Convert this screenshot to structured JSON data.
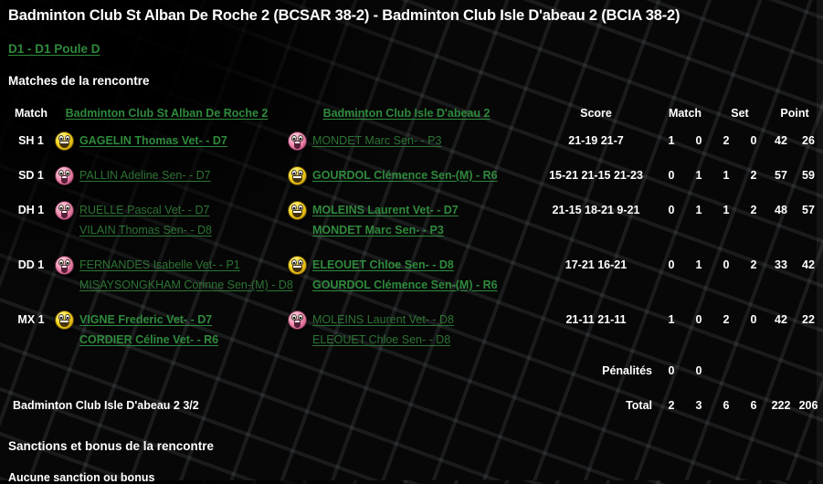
{
  "colors": {
    "link_green": "#2f8a3c",
    "muted_green": "#2c7433",
    "background": "#070707",
    "text": "#ffffff",
    "happy_emoji_yellow": "#f6d71d",
    "sad_emoji_pink": "#f291b4"
  },
  "title": "Badminton Club St Alban De Roche 2 (BCSAR 38-2) - Badminton Club Isle D'abeau 2 (BCIA 38-2)",
  "division_link": "D1 - D1 Poule D",
  "sections": {
    "matches": "Matches de la rencontre",
    "sanctions": "Sanctions et bonus de la rencontre"
  },
  "sanctions_text": "Aucune sanction ou bonus",
  "table": {
    "headers": {
      "match": "Match",
      "team1": "Badminton Club St Alban De Roche 2",
      "team2": "Badminton Club Isle D'abeau 2",
      "score": "Score",
      "match_won": "Match",
      "set": "Set",
      "point": "Point"
    },
    "rows": [
      {
        "label": "SH 1",
        "side1": {
          "emoji_class": "emoji happy",
          "names_class": "names win",
          "players": [
            "GAGELIN Thomas Vet- - D7"
          ]
        },
        "side2": {
          "emoji_class": "emoji sad",
          "names_class": "names lose",
          "players": [
            "MONDET Marc Sen- - P3"
          ]
        },
        "score": "21-19 21-7",
        "nums": [
          "1",
          "0",
          "2",
          "0",
          "42",
          "26"
        ]
      },
      {
        "label": "SD 1",
        "side1": {
          "emoji_class": "emoji sad",
          "names_class": "names lose",
          "players": [
            "PALLIN Adeline Sen- - D7"
          ]
        },
        "side2": {
          "emoji_class": "emoji happy",
          "names_class": "names win",
          "players": [
            "GOURDOL Clémence Sen-(M) - R6"
          ]
        },
        "score": "15-21 21-15 21-23",
        "nums": [
          "0",
          "1",
          "1",
          "2",
          "57",
          "59"
        ]
      },
      {
        "label": "DH 1",
        "side1": {
          "emoji_class": "emoji sad",
          "names_class": "names lose",
          "players": [
            "RUELLE Pascal Vet- - D7",
            "VILAIN Thomas Sen- - D8"
          ]
        },
        "side2": {
          "emoji_class": "emoji happy",
          "names_class": "names win",
          "players": [
            "MOLEINS Laurent Vet- - D7",
            "MONDET Marc Sen- - P3"
          ]
        },
        "score": "21-15 18-21 9-21",
        "nums": [
          "0",
          "1",
          "1",
          "2",
          "48",
          "57"
        ]
      },
      {
        "label": "DD 1",
        "side1": {
          "emoji_class": "emoji sad",
          "names_class": "names lose",
          "players": [
            "FERNANDES Isabelle Vet- - P1",
            "MISAYSONGKHAM Corinne Sen-(M) - D8"
          ]
        },
        "side2": {
          "emoji_class": "emoji happy",
          "names_class": "names win",
          "players": [
            "ELEOUET Chloe Sen- - D8",
            "GOURDOL Clémence Sen-(M) - R6"
          ]
        },
        "score": "17-21 16-21",
        "nums": [
          "0",
          "1",
          "0",
          "2",
          "33",
          "42"
        ]
      },
      {
        "label": "MX 1",
        "side1": {
          "emoji_class": "emoji happy",
          "names_class": "names win",
          "players": [
            "VIGNE Frederic Vet- - D7",
            "CORDIER Céline Vet- - R6"
          ]
        },
        "side2": {
          "emoji_class": "emoji sad",
          "names_class": "names lose",
          "players": [
            "MOLEINS Laurent Vet- - D8",
            "ELEOUET Chloe Sen- - D8"
          ]
        },
        "score": "21-11 21-11",
        "nums": [
          "1",
          "0",
          "2",
          "0",
          "42",
          "22"
        ]
      }
    ],
    "penalties_label": "Pénalités",
    "penalties": [
      "0",
      "0"
    ],
    "result_summary": "Badminton Club Isle D'abeau 2 3/2",
    "total_label": "Total",
    "totals": [
      "2",
      "3",
      "6",
      "6",
      "222",
      "206"
    ]
  }
}
